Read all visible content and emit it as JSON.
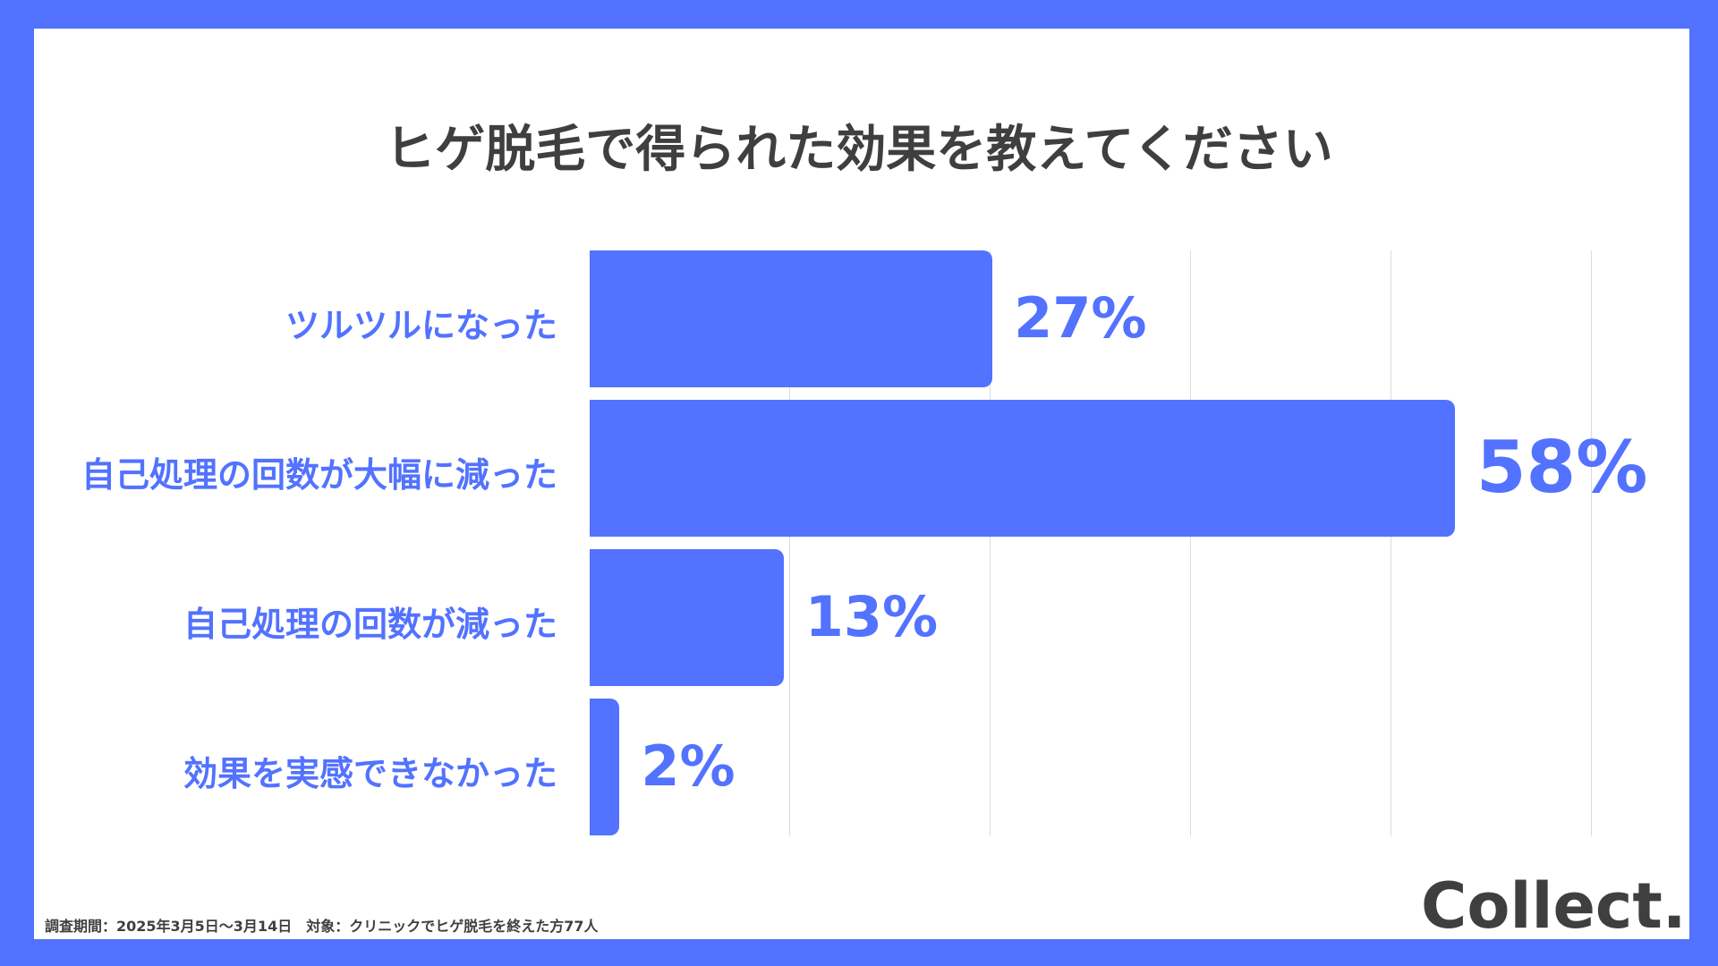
{
  "chart_data": {
    "type": "bar",
    "orientation": "horizontal",
    "title": "ヒゲ脱毛で得られた効果を教えてください",
    "categories": [
      "ツルツルになった",
      "自己処理の回数が大幅に減った",
      "自己処理の回数が減った",
      "効果を実感できなかった"
    ],
    "values": [
      27,
      58,
      13,
      2
    ],
    "value_labels": [
      "27%",
      "58%",
      "13%",
      "2%"
    ],
    "unit": "%",
    "xlim": [
      0,
      68
    ],
    "grid": true,
    "bar_color": "#5272FF"
  },
  "footnote": "調査期間：2025年3月5日〜3月14日　対象：クリニックでヒゲ脱毛を終えた方77人",
  "logo": "Collect.",
  "colors": {
    "background": "#5272FF",
    "accent": "#5272FF",
    "text": "#3F3F3F"
  }
}
